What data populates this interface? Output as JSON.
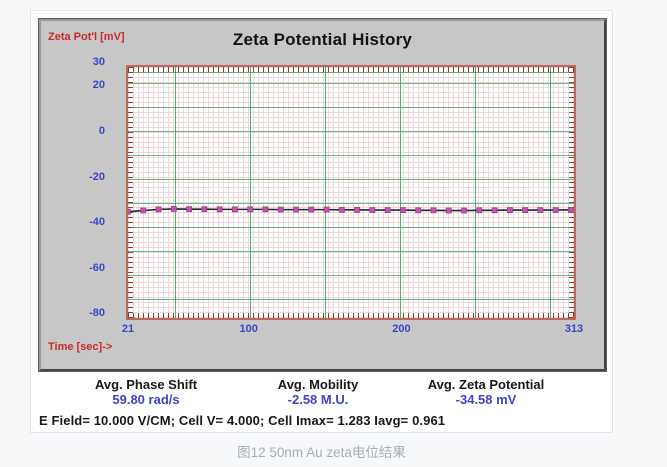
{
  "chart": {
    "title": "Zeta Potential History",
    "y_axis_label": "Zeta Pot'l [mV]",
    "x_axis_label": "Time [sec]->"
  },
  "chart_data": {
    "type": "line",
    "title": "Zeta Potential History",
    "xlabel": "Time [sec]",
    "ylabel": "Zeta Pot'l [mV]",
    "xlim": [
      21,
      313
    ],
    "ylim": [
      -82,
      28
    ],
    "x_ticks": [
      21,
      100,
      200,
      313
    ],
    "y_ticks": [
      30,
      20,
      0,
      -20,
      -40,
      -60,
      -80
    ],
    "grid": true,
    "legend_position": "none",
    "series": [
      {
        "name": "Zeta Potential",
        "marker": "square",
        "line_color": "#262626",
        "marker_color": "#c254ae",
        "marker_edge_color": "#9e3e90",
        "x": [
          21,
          31,
          41,
          51,
          61,
          71,
          81,
          91,
          101,
          111,
          121,
          131,
          141,
          151,
          161,
          171,
          181,
          191,
          201,
          211,
          221,
          231,
          241,
          251,
          261,
          271,
          281,
          291,
          301,
          311
        ],
        "y": [
          -35.4,
          -34.9,
          -34.4,
          -34.2,
          -34.3,
          -34.3,
          -34.4,
          -34.4,
          -34.4,
          -34.4,
          -34.5,
          -34.5,
          -34.5,
          -34.5,
          -34.6,
          -34.6,
          -34.7,
          -34.7,
          -34.7,
          -34.8,
          -34.8,
          -34.9,
          -34.9,
          -34.8,
          -34.8,
          -34.7,
          -34.7,
          -34.7,
          -34.7,
          -34.6
        ]
      }
    ]
  },
  "stats": {
    "items": [
      {
        "label": "Avg. Phase Shift",
        "value": "59.80 rad/s"
      },
      {
        "label": "Avg. Mobility",
        "value": "-2.58 M.U."
      },
      {
        "label": "Avg. Zeta Potential",
        "value": "-34.58 mV"
      }
    ],
    "conditions": "E Field= 10.000 V/CM; Cell V= 4.000; Cell Imax= 1.283 Iavg= 0.961"
  },
  "page": {
    "caption": "图12 50nm Au zeta电位结果"
  },
  "colors": {
    "accent_red": "#cb2a27",
    "accent_blue": "#3b46c4",
    "grid_major": "#3aa357",
    "grid_minor": "#ecd8d8",
    "plot_border": "#b96a5b",
    "panel_gray": "#c7c7c7"
  }
}
